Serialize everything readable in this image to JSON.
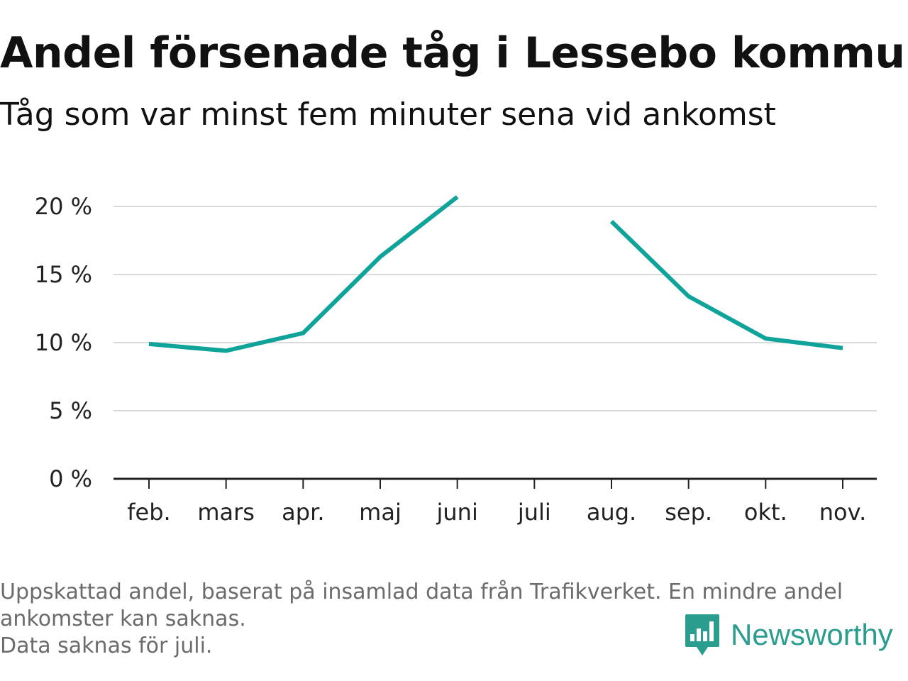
{
  "header": {
    "title": "Andel försenade tåg i Lessebo kommun",
    "subtitle": "Tåg som var minst fem minuter sena vid ankomst"
  },
  "chart_data": {
    "type": "line",
    "categories": [
      "feb.",
      "mars",
      "apr.",
      "maj",
      "juni",
      "juli",
      "aug.",
      "sep.",
      "okt.",
      "nov."
    ],
    "series": [
      {
        "values": [
          9.9,
          9.4,
          10.7,
          16.3,
          20.7,
          null,
          18.9,
          13.4,
          10.3,
          9.6
        ]
      }
    ],
    "y_ticks": [
      0,
      5,
      10,
      15,
      20
    ],
    "y_tick_labels": [
      "0 %",
      "5 %",
      "10 %",
      "15 %",
      "20 %"
    ],
    "ylim": [
      0,
      20
    ],
    "grid": true,
    "line_color": "#0fa39a"
  },
  "footnote": {
    "line1": "Uppskattad andel, baserat på insamlad data från Trafikverket. En mindre andel",
    "line2": "ankomster kan saknas.",
    "line3": "Data saknas för juli."
  },
  "brand": {
    "name": "Newsworthy",
    "icon": "newsworthy-logo-icon",
    "color": "#2a9d8f"
  }
}
